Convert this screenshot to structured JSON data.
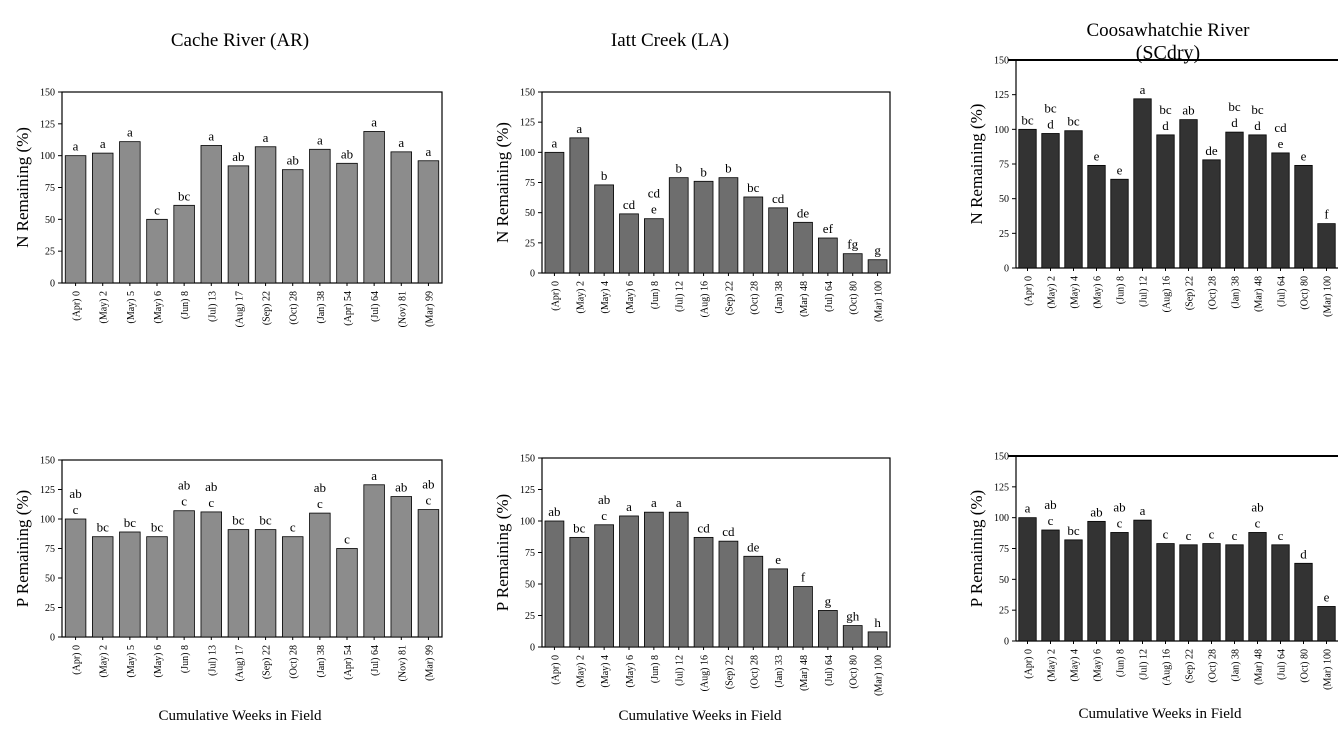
{
  "figure": {
    "column_titles": [
      "Cache River (AR)",
      "Iatt Creek (LA)",
      "Coosawhatchie River"
    ],
    "column_subtitle_3": "(SCdry)",
    "x_axis_label": "Cumulative Weeks in Field"
  },
  "chart_data": [
    {
      "type": "bar",
      "panel": "Cache River N",
      "ylabel": "N Remaining (%)",
      "ylim": [
        0,
        150
      ],
      "yticks": [
        0,
        25,
        50,
        75,
        100,
        125,
        150
      ],
      "color": "#8c8c8c",
      "categories": [
        "(Apr) 0",
        "(May) 2",
        "(May) 5",
        "(May) 6",
        "(Jun) 8",
        "(Jul) 13",
        "(Aug) 17",
        "(Sep) 22",
        "(Oct) 28",
        "(Jan) 38",
        "(Apr) 54",
        "(Jul) 64",
        "(Nov) 81",
        "(Mar) 99"
      ],
      "values": [
        100,
        102,
        111,
        50,
        61,
        108,
        92,
        107,
        89,
        105,
        94,
        119,
        103,
        96
      ],
      "letters": [
        "a",
        "a",
        "a",
        "c",
        "bc",
        "a",
        "ab",
        "a",
        "ab",
        "a",
        "ab",
        "a",
        "a",
        "a"
      ]
    },
    {
      "type": "bar",
      "panel": "Iatt Creek N",
      "ylabel": "N Remaining (%)",
      "ylim": [
        0,
        150
      ],
      "yticks": [
        0,
        25,
        50,
        75,
        100,
        125,
        150
      ],
      "color": "#6e6e6e",
      "categories": [
        "(Apr) 0",
        "(May) 2",
        "(May) 4",
        "(May) 6",
        "(Jun) 8",
        "(Jul) 12",
        "(Aug) 16",
        "(Sep) 22",
        "(Oct) 28",
        "(Jan) 38",
        "(Mar) 48",
        "(Jul) 64",
        "(Oct) 80",
        "(Mar) 100"
      ],
      "values": [
        100,
        112,
        73,
        49,
        45,
        79,
        76,
        79,
        63,
        54,
        42,
        29,
        16,
        11
      ],
      "letters": [
        "a",
        "a",
        "b",
        "cd",
        "cd e",
        "b",
        "b",
        "b",
        "bc",
        "cd",
        "de",
        "ef",
        "fg",
        "g"
      ]
    },
    {
      "type": "bar",
      "panel": "Coosawhatchie N",
      "ylabel": "N Remaining (%)",
      "ylim": [
        0,
        150
      ],
      "yticks": [
        0,
        25,
        50,
        75,
        100,
        125,
        150
      ],
      "color": "#333333",
      "categories": [
        "(Apr) 0",
        "(May) 2",
        "(May) 4",
        "(May) 6",
        "(Jun) 8",
        "(Jul) 12",
        "(Aug) 16",
        "(Sep) 22",
        "(Oct) 28",
        "(Jan) 38",
        "(Mar) 48",
        "(Jul) 64",
        "(Oct) 80",
        "(Mar) 100"
      ],
      "values": [
        100,
        97,
        99,
        74,
        64,
        122,
        96,
        107,
        78,
        98,
        96,
        83,
        74,
        32
      ],
      "letters": [
        "bc",
        "bc d",
        "bc",
        "e",
        "e",
        "a",
        "bc d",
        "ab",
        "de",
        "bc d",
        "bc d",
        "cd e",
        "e",
        "f"
      ]
    },
    {
      "type": "bar",
      "panel": "Cache River P",
      "ylabel": "P Remaining (%)",
      "ylim": [
        0,
        150
      ],
      "yticks": [
        0,
        25,
        50,
        75,
        100,
        125,
        150
      ],
      "color": "#8c8c8c",
      "categories": [
        "(Apr) 0",
        "(May) 2",
        "(May) 5",
        "(May) 6",
        "(Jun) 8",
        "(Jul) 13",
        "(Aug) 17",
        "(Sep) 22",
        "(Oct) 28",
        "(Jan) 38",
        "(Apr) 54",
        "(Jul) 64",
        "(Nov) 81",
        "(Mar) 99"
      ],
      "values": [
        100,
        85,
        89,
        85,
        107,
        106,
        91,
        91,
        85,
        105,
        75,
        129,
        119,
        108
      ],
      "letters": [
        "ab c",
        "bc",
        "bc",
        "bc",
        "ab c",
        "ab c",
        "bc",
        "bc",
        "c",
        "ab c",
        "c",
        "a",
        "ab",
        "ab c"
      ]
    },
    {
      "type": "bar",
      "panel": "Iatt Creek P",
      "ylabel": "P Remaining (%)",
      "ylim": [
        0,
        150
      ],
      "yticks": [
        0,
        25,
        50,
        75,
        100,
        125,
        150
      ],
      "color": "#6e6e6e",
      "categories": [
        "(Apr) 0",
        "(May) 2",
        "(May) 4",
        "(May) 6",
        "(Jun) 8",
        "(Jul) 12",
        "(Aug) 16",
        "(Sep) 22",
        "(Oct) 28",
        "(Jan) 33",
        "(Mar) 48",
        "(Jul) 64",
        "(Oct) 80",
        "(Mar) 100"
      ],
      "values": [
        100,
        87,
        97,
        104,
        107,
        107,
        87,
        84,
        72,
        62,
        48,
        29,
        17,
        12
      ],
      "letters": [
        "ab",
        "bc",
        "ab c",
        "a",
        "a",
        "a",
        "cd",
        "cd",
        "de",
        "e",
        "f",
        "g",
        "gh",
        "h"
      ]
    },
    {
      "type": "bar",
      "panel": "Coosawhatchie P",
      "ylabel": "P Remaining (%)",
      "ylim": [
        0,
        150
      ],
      "yticks": [
        0,
        25,
        50,
        75,
        100,
        125,
        150
      ],
      "color": "#333333",
      "categories": [
        "(Apr) 0",
        "(May) 2",
        "(May) 4",
        "(May) 6",
        "(Jun) 8",
        "(Jul) 12",
        "(Aug) 16",
        "(Sep) 22",
        "(Oct) 28",
        "(Jan) 38",
        "(Mar) 48",
        "(Jul) 64",
        "(Oct) 80",
        "(Mar) 100"
      ],
      "values": [
        100,
        90,
        82,
        97,
        88,
        98,
        79,
        78,
        79,
        78,
        88,
        78,
        63,
        28
      ],
      "letters": [
        "a",
        "ab c",
        "bc",
        "ab",
        "ab c",
        "a",
        "c",
        "c",
        "c",
        "c",
        "ab c",
        "c",
        "d",
        "e"
      ]
    }
  ]
}
